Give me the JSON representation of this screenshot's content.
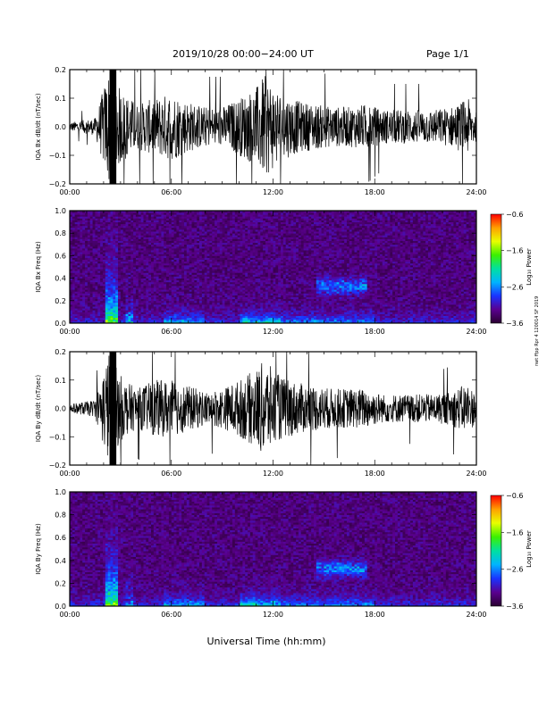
{
  "header": {
    "title": "2019/10/28  00:00−24:00 UT",
    "page": "Page 1/1"
  },
  "footer": {
    "xlabel": "Universal Time (hh:mm)"
  },
  "side_note": "nwt ffpp Rpr 4 120014 SF 2019",
  "chart_data": [
    {
      "type": "line",
      "ylabel": "IQA Bx dB/dt (nT/sec)",
      "xticks": [
        "00:00",
        "06:00",
        "12:00",
        "18:00",
        "24:00"
      ],
      "yticks": [
        "−0.2",
        "−0.1",
        "0.0",
        "0.1",
        "0.2"
      ],
      "xlim": [
        0,
        24
      ],
      "ylim": [
        -0.2,
        0.2
      ],
      "series": [
        {
          "x": [
            0,
            1.5,
            2.3,
            2.5,
            2.8,
            3.2,
            4.0,
            5.0,
            6.0,
            7.0,
            8.0,
            9.0,
            10.0,
            11.0,
            11.5,
            12.5,
            13.5,
            14.5,
            15.5,
            16.5,
            17.5,
            18.5,
            19.5,
            20.5,
            21.5,
            22.5,
            23.5,
            24.0
          ],
          "amp": [
            0.015,
            0.03,
            0.2,
            0.2,
            0.15,
            0.12,
            0.08,
            0.1,
            0.12,
            0.09,
            0.07,
            0.07,
            0.1,
            0.14,
            0.18,
            0.12,
            0.09,
            0.08,
            0.07,
            0.07,
            0.08,
            0.06,
            0.06,
            0.06,
            0.06,
            0.07,
            0.1,
            0.05
          ]
        }
      ]
    },
    {
      "type": "heatmap",
      "ylabel": "IQA Bx Freq (Hz)",
      "colorbar_label": "Log₁₀ Power",
      "colorbar_ticks": [
        "−0.6",
        "−1.6",
        "−2.6",
        "−3.6"
      ],
      "xticks": [
        "00:00",
        "06:00",
        "12:00",
        "18:00",
        "24:00"
      ],
      "yticks": [
        "0.0",
        "0.2",
        "0.4",
        "0.6",
        "0.8",
        "1.0"
      ],
      "xlim": [
        0,
        24
      ],
      "ylim": [
        0,
        1
      ],
      "zlim": [
        -3.6,
        -0.6
      ],
      "colorscale": [
        "#2a0030",
        "#5a0090",
        "#1a33ff",
        "#00b4ff",
        "#00e0a0",
        "#3cf000",
        "#e8ff00",
        "#ffa000",
        "#ff0000"
      ]
    },
    {
      "type": "line",
      "ylabel": "IQA By dB/dt (nT/sec)",
      "xticks": [
        "00:00",
        "06:00",
        "12:00",
        "18:00",
        "24:00"
      ],
      "yticks": [
        "−0.2",
        "−0.1",
        "0.0",
        "0.1",
        "0.2"
      ],
      "xlim": [
        0,
        24
      ],
      "ylim": [
        -0.2,
        0.2
      ],
      "series": [
        {
          "x": [
            0,
            1.5,
            2.3,
            2.5,
            2.8,
            3.2,
            4.0,
            5.0,
            6.0,
            7.0,
            8.0,
            9.0,
            10.0,
            11.0,
            11.5,
            12.5,
            13.5,
            14.5,
            15.5,
            16.5,
            17.5,
            18.5,
            19.5,
            20.5,
            21.5,
            22.5,
            23.5,
            24.0
          ],
          "amp": [
            0.015,
            0.03,
            0.2,
            0.2,
            0.14,
            0.1,
            0.07,
            0.1,
            0.1,
            0.08,
            0.06,
            0.07,
            0.1,
            0.14,
            0.17,
            0.11,
            0.09,
            0.08,
            0.07,
            0.07,
            0.07,
            0.05,
            0.05,
            0.05,
            0.05,
            0.06,
            0.09,
            0.05
          ]
        }
      ]
    },
    {
      "type": "heatmap",
      "ylabel": "IQA By Freq (Hz)",
      "colorbar_label": "Log₁₀ Power",
      "colorbar_ticks": [
        "−0.6",
        "−1.6",
        "−2.6",
        "−3.6"
      ],
      "xticks": [
        "00:00",
        "06:00",
        "12:00",
        "18:00",
        "24:00"
      ],
      "yticks": [
        "0.0",
        "0.2",
        "0.4",
        "0.6",
        "0.8",
        "1.0"
      ],
      "xlim": [
        0,
        24
      ],
      "ylim": [
        0,
        1
      ],
      "zlim": [
        -3.6,
        -0.6
      ],
      "colorscale": [
        "#2a0030",
        "#5a0090",
        "#1a33ff",
        "#00b4ff",
        "#00e0a0",
        "#3cf000",
        "#e8ff00",
        "#ffa000",
        "#ff0000"
      ]
    }
  ]
}
